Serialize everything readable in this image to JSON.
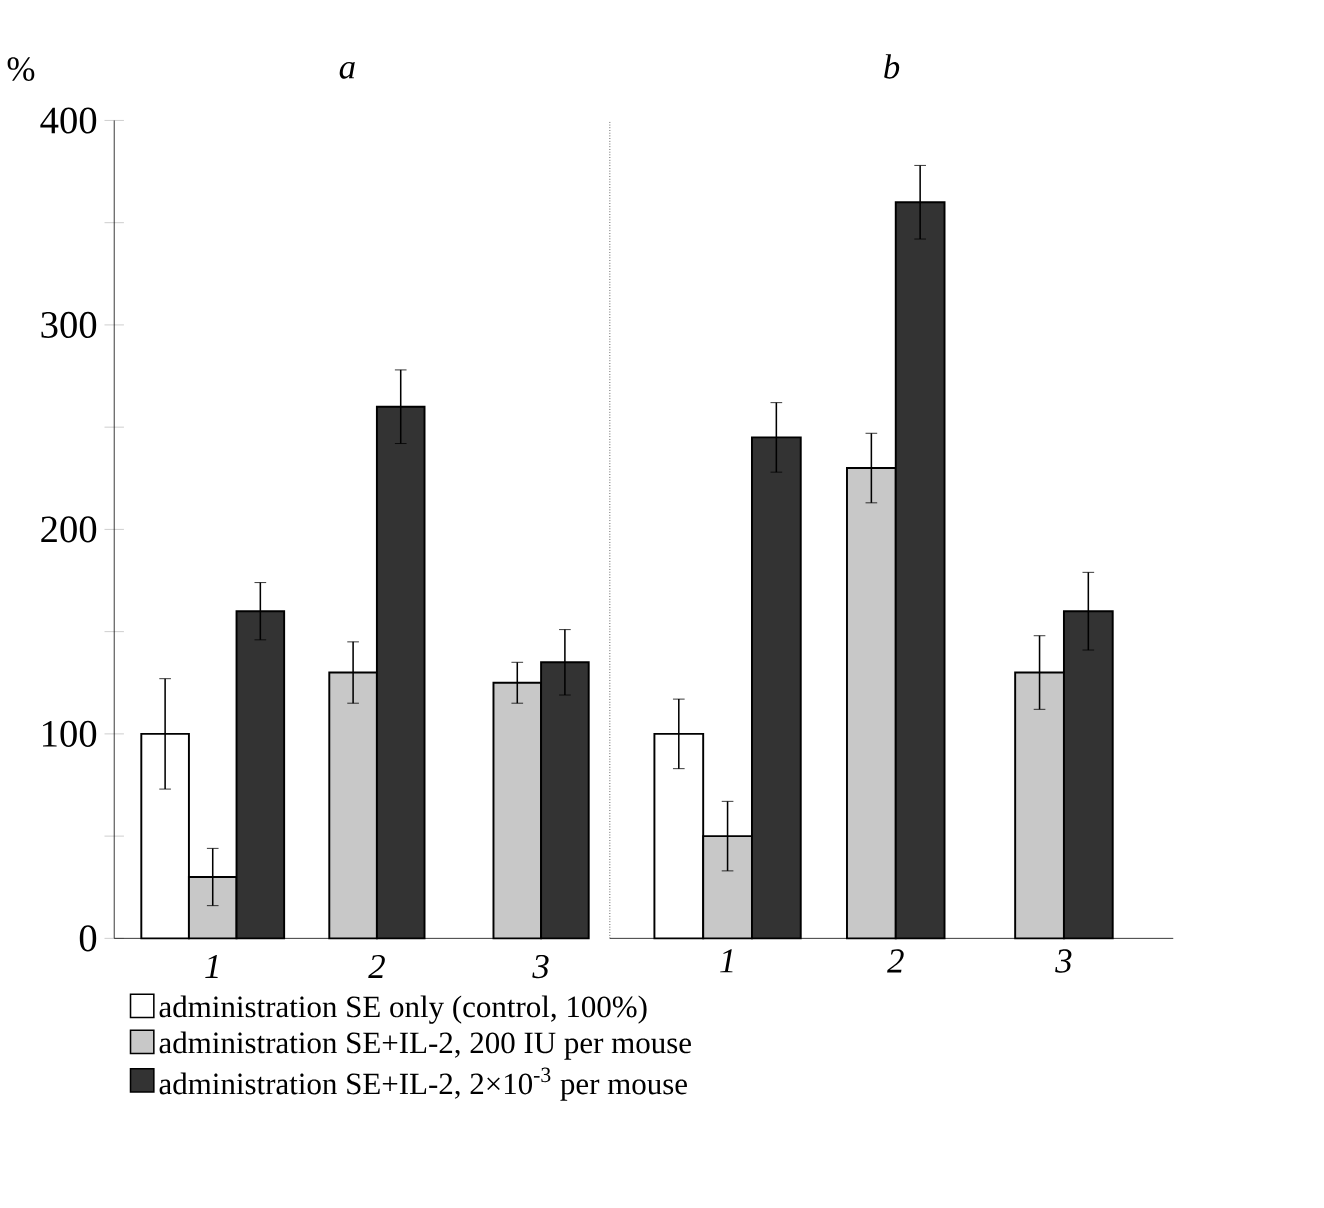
{
  "chart_data": [
    {
      "type": "bar",
      "title": "a",
      "ylabel": "%",
      "categories": [
        "1",
        "2",
        "3"
      ],
      "ylim": [
        0,
        400
      ],
      "yticks": [
        0,
        {
          "value": 50,
          "label": null
        },
        100,
        {
          "value": 150,
          "label": null
        },
        200,
        {
          "value": 250,
          "label": null
        },
        300,
        {
          "value": 350,
          "label": null
        },
        400
      ],
      "legend": "bottom",
      "series": [
        {
          "name": "administration SE only (control, 100%)",
          "color": "#ffffff",
          "values": [
            100,
            null,
            null
          ],
          "errors": [
            27,
            null,
            null
          ]
        },
        {
          "name": "administration SE+IL-2, 200 IU per mouse",
          "color": "#c8c8c8",
          "values": [
            30,
            130,
            125
          ],
          "errors": [
            14,
            15,
            10
          ]
        },
        {
          "name": "administration SE+IL-2, 2×10$^{-3}$ per mouse",
          "color": "#333333",
          "values": [
            160,
            260,
            135
          ],
          "errors": [
            14,
            18,
            16
          ]
        }
      ]
    },
    {
      "type": "bar",
      "title": "b",
      "categories": [
        "1",
        "2",
        "3"
      ],
      "ylim": [
        0,
        400
      ],
      "tick_labels": "x",
      "series": [
        {
          "color": "#ffffff",
          "values": [
            100,
            null,
            null
          ],
          "errors": [
            17,
            null,
            null
          ]
        },
        {
          "color": "#c8c8c8",
          "values": [
            50,
            230,
            130
          ],
          "errors": [
            17,
            17,
            18
          ]
        },
        {
          "color": "#333333",
          "values": [
            245,
            360,
            160
          ],
          "errors": [
            17,
            18,
            19
          ]
        }
      ]
    }
  ]
}
